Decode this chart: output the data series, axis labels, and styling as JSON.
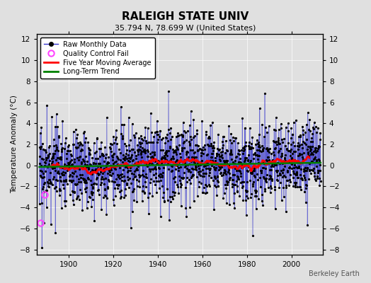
{
  "title": "RALEIGH STATE UNIV",
  "subtitle": "35.794 N, 78.699 W (United States)",
  "ylabel": "Temperature Anomaly (°C)",
  "credit": "Berkeley Earth",
  "year_start": 1887,
  "year_end": 2013,
  "ylim": [
    -8.5,
    12.5
  ],
  "yticks": [
    -8,
    -6,
    -4,
    -2,
    0,
    2,
    4,
    6,
    8,
    10,
    12
  ],
  "xticks": [
    1900,
    1920,
    1940,
    1960,
    1980,
    2000
  ],
  "line_color": "#3333cc",
  "marker_color": "black",
  "qc_color": "#ff44ff",
  "moving_avg_color": "red",
  "trend_color": "green",
  "background_color": "#e0e0e0",
  "seed": 17,
  "n_months": 1520
}
